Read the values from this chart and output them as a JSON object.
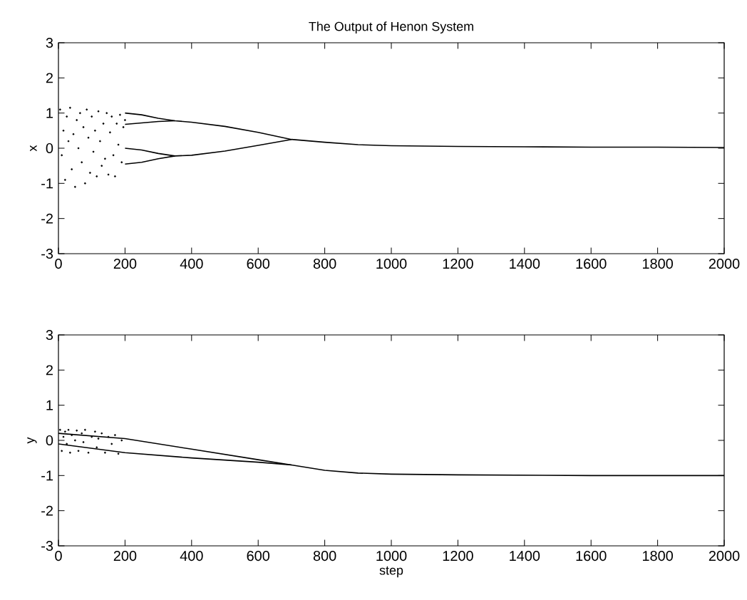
{
  "chart_data": [
    {
      "type": "line",
      "title": "The Output of Henon System",
      "ylabel": "x",
      "xlim": [
        0,
        2000
      ],
      "ylim": [
        -3,
        3
      ],
      "xticks": [
        0,
        200,
        400,
        600,
        800,
        1000,
        1200,
        1400,
        1600,
        1800,
        2000
      ],
      "yticks": [
        -3,
        -2,
        -1,
        0,
        1,
        2,
        3
      ],
      "series": [
        {
          "type": "scatter",
          "color": "#000000",
          "x": [
            5,
            10,
            15,
            20,
            25,
            30,
            35,
            40,
            45,
            50,
            55,
            60,
            65,
            70,
            75,
            80,
            85,
            90,
            95,
            100,
            105,
            110,
            115,
            120,
            125,
            130,
            135,
            140,
            145,
            150,
            155,
            160,
            165,
            170,
            175,
            180,
            185,
            190,
            195,
            200
          ],
          "values": [
            1.1,
            -0.2,
            0.5,
            -0.9,
            0.9,
            0.2,
            1.15,
            -0.6,
            0.4,
            -1.1,
            0.8,
            0.0,
            1.0,
            -0.4,
            0.6,
            -1.0,
            1.1,
            0.3,
            -0.7,
            0.9,
            -0.1,
            0.5,
            -0.8,
            1.05,
            0.2,
            -0.5,
            0.7,
            -0.3,
            1.0,
            -0.75,
            0.45,
            0.9,
            -0.2,
            -0.8,
            0.7,
            0.1,
            0.95,
            -0.4,
            0.6,
            0.8
          ]
        },
        {
          "color": "#000000",
          "x": [
            200,
            250,
            300,
            350,
            400,
            500,
            600,
            700,
            800,
            900,
            1000,
            1100,
            1200,
            1400,
            1600,
            1800,
            2000
          ],
          "values": [
            1.0,
            0.95,
            0.85,
            0.78,
            0.74,
            0.62,
            0.45,
            0.25,
            0.17,
            0.1,
            0.07,
            0.06,
            0.05,
            0.04,
            0.03,
            0.03,
            0.02
          ]
        },
        {
          "color": "#000000",
          "x": [
            200,
            250,
            300,
            350
          ],
          "values": [
            0.68,
            0.72,
            0.76,
            0.78
          ]
        },
        {
          "color": "#000000",
          "x": [
            200,
            250,
            300,
            350,
            400,
            500,
            600,
            700
          ],
          "values": [
            -0.45,
            -0.4,
            -0.3,
            -0.22,
            -0.2,
            -0.08,
            0.08,
            0.25
          ]
        },
        {
          "color": "#000000",
          "x": [
            200,
            250,
            300,
            350
          ],
          "values": [
            0.0,
            -0.05,
            -0.15,
            -0.22
          ]
        }
      ]
    },
    {
      "type": "line",
      "xlabel": "step",
      "ylabel": "y",
      "xlim": [
        0,
        2000
      ],
      "ylim": [
        -3,
        3
      ],
      "xticks": [
        0,
        200,
        400,
        600,
        800,
        1000,
        1200,
        1400,
        1600,
        1800,
        2000
      ],
      "yticks": [
        -3,
        -2,
        -1,
        0,
        1,
        2,
        3
      ],
      "series": [
        {
          "type": "scatter",
          "color": "#000000",
          "x": [
            5,
            10,
            15,
            20,
            25,
            30,
            35,
            40,
            50,
            55,
            60,
            70,
            75,
            80,
            90,
            100,
            110,
            115,
            120,
            130,
            140,
            150,
            160,
            170,
            180,
            190
          ],
          "values": [
            0.3,
            -0.3,
            0.1,
            0.25,
            -0.1,
            0.3,
            -0.35,
            0.15,
            0.0,
            0.28,
            -0.3,
            0.2,
            -0.05,
            0.3,
            -0.35,
            0.1,
            0.25,
            -0.2,
            0.05,
            0.2,
            -0.35,
            0.1,
            -0.1,
            0.15,
            -0.38,
            0.0
          ]
        },
        {
          "color": "#000000",
          "x": [
            0,
            200,
            400,
            600,
            700,
            800,
            900,
            1000,
            1200,
            1600,
            2000
          ],
          "values": [
            0.2,
            0.05,
            -0.25,
            -0.55,
            -0.7,
            -0.85,
            -0.93,
            -0.96,
            -0.98,
            -1.0,
            -1.0
          ]
        },
        {
          "color": "#000000",
          "x": [
            0,
            200,
            400,
            600,
            700
          ],
          "values": [
            -0.1,
            -0.35,
            -0.5,
            -0.62,
            -0.7
          ]
        }
      ]
    }
  ]
}
